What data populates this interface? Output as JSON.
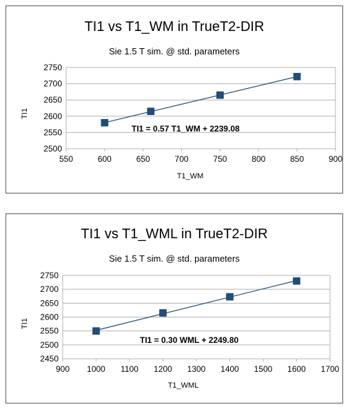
{
  "chart_data": [
    {
      "type": "scatter",
      "title": "TI1 vs T1_WM in TrueT2-DIR",
      "subtitle": "Sie 1.5 T sim. @ std. parameters",
      "xlabel": "T1_WM",
      "ylabel": "TI1",
      "xlim": [
        550,
        900
      ],
      "ylim": [
        2500,
        2750
      ],
      "xticks": [
        550,
        600,
        650,
        700,
        750,
        800,
        850,
        900
      ],
      "yticks": [
        2500,
        2550,
        2600,
        2650,
        2700,
        2750
      ],
      "grid": "horizontal",
      "legend": "none",
      "trendline": "linear",
      "equation": "TI1 = 0.57 T1_WM + 2239.08",
      "series_color": "#1f4e79",
      "points": [
        {
          "x": 600,
          "y": 2580
        },
        {
          "x": 660,
          "y": 2615
        },
        {
          "x": 750,
          "y": 2665
        },
        {
          "x": 850,
          "y": 2722
        }
      ]
    },
    {
      "type": "scatter",
      "title": "TI1 vs T1_WML in TrueT2-DIR",
      "subtitle": "Sie 1.5 T sim. @ std. parameters",
      "xlabel": "T1_WML",
      "ylabel": "TI1",
      "xlim": [
        900,
        1700
      ],
      "ylim": [
        2450,
        2750
      ],
      "xticks": [
        900,
        1000,
        1100,
        1200,
        1300,
        1400,
        1500,
        1600,
        1700
      ],
      "yticks": [
        2450,
        2500,
        2550,
        2600,
        2650,
        2700,
        2750
      ],
      "grid": "horizontal",
      "legend": "none",
      "trendline": "linear",
      "equation": "TI1 = 0.30 WML + 2249.80",
      "series_color": "#1f4e79",
      "points": [
        {
          "x": 1000,
          "y": 2550
        },
        {
          "x": 1200,
          "y": 2615
        },
        {
          "x": 1400,
          "y": 2673
        },
        {
          "x": 1600,
          "y": 2730
        }
      ]
    }
  ]
}
